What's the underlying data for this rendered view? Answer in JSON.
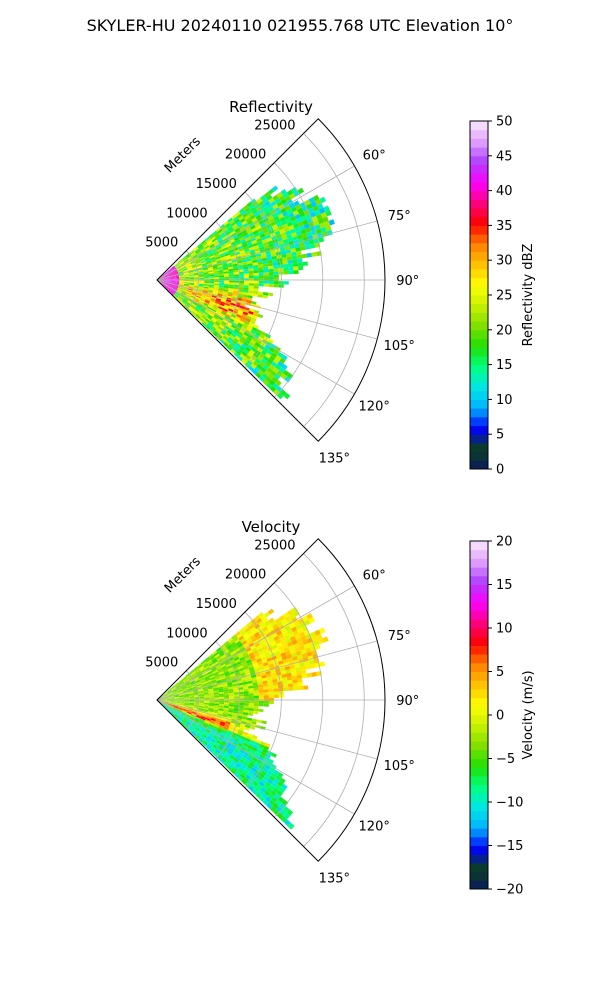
{
  "title": "SKYLER-HU  20240110  021955.768 UTC Elevation 10°",
  "chart_data": [
    {
      "type": "heatmap",
      "subtype": "polar-sector",
      "title": "Reflectivity",
      "radial_label": "Meters",
      "r_ticks": [
        5000,
        10000,
        15000,
        20000,
        25000
      ],
      "r_tick_labels": [
        "5000",
        "10000",
        "15000",
        "20000",
        "25000"
      ],
      "rlim": [
        0,
        27500
      ],
      "theta_ticks": [
        60,
        75,
        90,
        105,
        120,
        135
      ],
      "theta_tick_labels": [
        "60°",
        "75°",
        "90°",
        "105°",
        "120°",
        "135°"
      ],
      "theta_range_deg": [
        45,
        135
      ],
      "data_extent": {
        "azimuth_deg": [
          50,
          133
        ],
        "range_m": [
          0,
          21000
        ]
      },
      "grid": true,
      "colorbar": {
        "label": "Reflectivity dBZ",
        "min": 0,
        "max": 50,
        "ticks": [
          0,
          5,
          10,
          15,
          20,
          25,
          30,
          35,
          40,
          45,
          50
        ],
        "tick_labels": [
          "0",
          "5",
          "10",
          "15",
          "20",
          "25",
          "30",
          "35",
          "40",
          "45",
          "50"
        ],
        "stops": [
          "#081a5e",
          "#0c3f20",
          "#0000ff",
          "#00b4ff",
          "#00e6e6",
          "#00ff80",
          "#20e000",
          "#80e000",
          "#c8f000",
          "#ffff00",
          "#ffc000",
          "#ff8000",
          "#ff0000",
          "#ff0080",
          "#ff00ff",
          "#b040ff",
          "#e0a0ff",
          "#fce8ff"
        ]
      }
    },
    {
      "type": "heatmap",
      "subtype": "polar-sector",
      "title": "Velocity",
      "radial_label": "Meters",
      "r_ticks": [
        5000,
        10000,
        15000,
        20000,
        25000
      ],
      "r_tick_labels": [
        "5000",
        "10000",
        "15000",
        "20000",
        "25000"
      ],
      "rlim": [
        0,
        27500
      ],
      "theta_ticks": [
        60,
        75,
        90,
        105,
        120,
        135
      ],
      "theta_tick_labels": [
        "60°",
        "75°",
        "90°",
        "105°",
        "120°",
        "135°"
      ],
      "theta_range_deg": [
        45,
        135
      ],
      "data_extent": {
        "azimuth_deg": [
          50,
          133
        ],
        "range_m": [
          0,
          21000
        ]
      },
      "grid": true,
      "colorbar": {
        "label": "Velocity (m/s)",
        "min": -20,
        "max": 20,
        "ticks": [
          -20,
          -15,
          -10,
          -5,
          0,
          5,
          10,
          15,
          20
        ],
        "tick_labels": [
          "−20",
          "−15",
          "−10",
          "−5",
          "0",
          "5",
          "10",
          "15",
          "20"
        ],
        "stops": [
          "#081a5e",
          "#0c3f20",
          "#0000ff",
          "#00b4ff",
          "#00e6e6",
          "#00ff80",
          "#20e000",
          "#80e000",
          "#c8f000",
          "#ffff00",
          "#ffc000",
          "#ff8000",
          "#ff0000",
          "#ff0080",
          "#ff00ff",
          "#b040ff",
          "#e0a0ff",
          "#fce8ff"
        ]
      }
    }
  ]
}
